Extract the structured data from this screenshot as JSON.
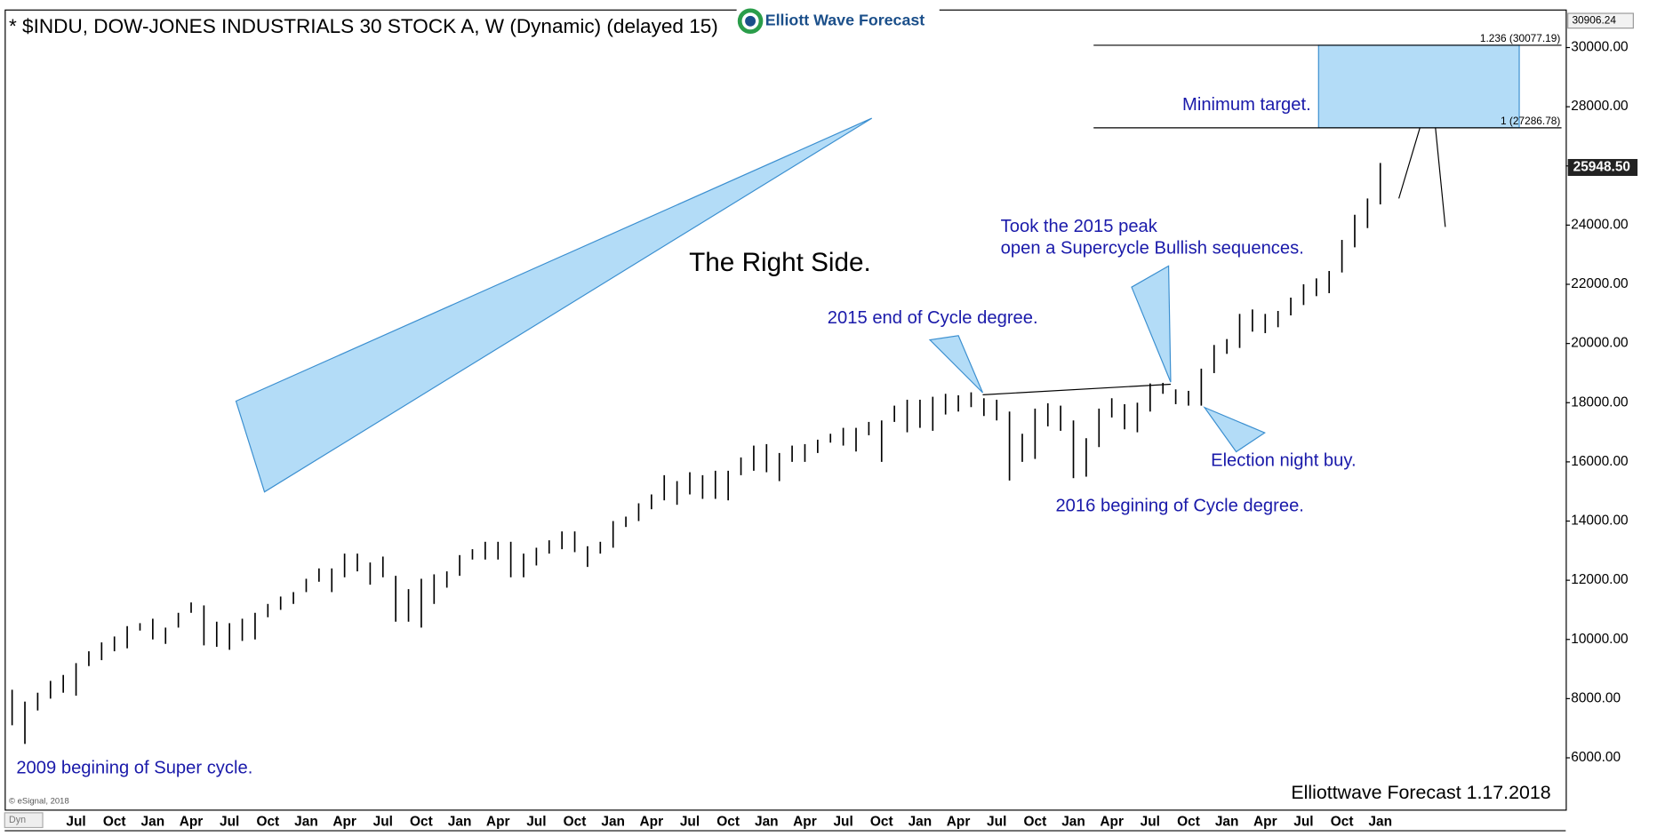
{
  "chart_data": {
    "type": "range",
    "title": "* $INDU, DOW-JONES INDUSTRIALS 30 STOCK A, W (Dynamic) (delayed 15)",
    "logo": "Elliott Wave Forecast",
    "categories": [
      null,
      null,
      null,
      null,
      null,
      "Jul",
      null,
      null,
      "Oct",
      null,
      null,
      "Jan",
      null,
      null,
      "Apr",
      null,
      null,
      "Jul",
      null,
      null,
      "Oct",
      null,
      null,
      "Jan",
      null,
      null,
      "Apr",
      null,
      null,
      "Jul",
      null,
      null,
      "Oct",
      null,
      null,
      "Jan",
      null,
      null,
      "Apr",
      null,
      null,
      "Jul",
      null,
      null,
      "Oct",
      null,
      null,
      "Jan",
      null,
      null,
      "Apr",
      null,
      null,
      "Jul",
      null,
      null,
      "Oct",
      null,
      null,
      "Jan",
      null,
      null,
      "Apr",
      null,
      null,
      "Jul",
      null,
      null,
      "Oct",
      null,
      null,
      "Jan",
      null,
      null,
      "Apr",
      null,
      null,
      "Jul",
      null,
      null,
      "Oct",
      null,
      null,
      "Jan",
      null,
      null,
      "Apr",
      null,
      null,
      "Jul",
      null,
      null,
      "Oct",
      null,
      null,
      "Jan",
      null,
      null,
      "Apr",
      null,
      null,
      "Jul",
      null,
      null,
      "Oct",
      null,
      null,
      "Jan",
      null,
      null,
      null,
      null,
      null,
      null,
      null,
      null,
      null,
      null,
      null,
      null,
      null,
      null
    ],
    "high": [
      8300,
      7900,
      8200,
      8600,
      8800,
      9200,
      9600,
      9900,
      10100,
      10450,
      10550,
      10700,
      10400,
      10900,
      11250,
      11150,
      10600,
      10550,
      10700,
      10900,
      11200,
      11450,
      11600,
      12050,
      12400,
      12400,
      12900,
      12900,
      12600,
      12800,
      12150,
      11700,
      12050,
      12200,
      12300,
      12850,
      13050,
      13300,
      13300,
      13300,
      12900,
      13100,
      13350,
      13650,
      13650,
      13150,
      13300,
      14000,
      14150,
      14600,
      14900,
      15550,
      15350,
      15650,
      15550,
      15700,
      15700,
      16150,
      16550,
      16600,
      16300,
      16550,
      16600,
      16750,
      16950,
      17150,
      17150,
      17350,
      17400,
      17900,
      18100,
      18100,
      18200,
      18300,
      18250,
      18350,
      18150,
      18100,
      17700,
      16950,
      17800,
      17980,
      17900,
      17400,
      16800,
      17800,
      18150,
      17950,
      18000,
      18650,
      18670,
      18450,
      18400,
      19150,
      19950,
      20150,
      21000,
      21150,
      21000,
      21100,
      21550,
      22000,
      22200,
      22450,
      23500,
      24350,
      24900,
      26100,
      null,
      null,
      null,
      null,
      null,
      null,
      null,
      null,
      null,
      null,
      null,
      null,
      null,
      null
    ],
    "low": [
      7100,
      6470,
      7600,
      8000,
      8200,
      8100,
      9100,
      9300,
      9600,
      9700,
      10300,
      10000,
      9850,
      10400,
      10900,
      9800,
      9750,
      9650,
      9950,
      10000,
      10750,
      11000,
      11200,
      11600,
      11950,
      11600,
      12100,
      12300,
      11850,
      12100,
      10600,
      10600,
      10400,
      11200,
      11750,
      12150,
      12700,
      12700,
      12700,
      12100,
      12100,
      12500,
      12900,
      13050,
      12950,
      12450,
      12900,
      13100,
      13800,
      14000,
      14400,
      14700,
      14550,
      14900,
      14750,
      14750,
      14700,
      15550,
      15700,
      15650,
      15350,
      16000,
      16000,
      16300,
      16650,
      16550,
      16350,
      16900,
      16000,
      17350,
      17000,
      17150,
      17050,
      17600,
      17700,
      17850,
      17550,
      17400,
      15370,
      16000,
      16100,
      17200,
      17050,
      15450,
      15500,
      16500,
      17500,
      17100,
      17000,
      17700,
      18300,
      17950,
      17900,
      17900,
      19000,
      19650,
      19850,
      20400,
      20350,
      20550,
      20950,
      21300,
      21600,
      21700,
      22400,
      23250,
      23900,
      24700,
      null,
      null,
      null,
      null,
      null,
      null,
      null,
      null,
      null,
      null,
      null,
      null,
      null,
      null
    ],
    "color": "#000000",
    "ylim": [
      4250,
      31250
    ],
    "yticks": [
      {
        "value": 6000,
        "label": "6000.00"
      },
      {
        "value": 8000,
        "label": "8000.00"
      },
      {
        "value": 10000,
        "label": "10000.00"
      },
      {
        "value": 12000,
        "label": "12000.00"
      },
      {
        "value": 14000,
        "label": "14000.00"
      },
      {
        "value": 16000,
        "label": "16000.00"
      },
      {
        "value": 18000,
        "label": "18000.00"
      },
      {
        "value": 20000,
        "label": "20000.00"
      },
      {
        "value": 22000,
        "label": "22000.00"
      },
      {
        "value": 24000,
        "label": "24000.00"
      },
      {
        "value": 26000,
        "label": "26000.00"
      },
      {
        "value": 28000,
        "label": "28000.00"
      },
      {
        "value": 30000,
        "label": "30000.00"
      }
    ],
    "axis_high": 30906.24,
    "last_price": {
      "value": 25948.5,
      "label": "25948.50"
    },
    "fib_levels": [
      {
        "value": 30077.19,
        "label": "1.236 (30077.19)"
      },
      {
        "value": 27286.78,
        "label": "1 (27286.78)"
      }
    ],
    "annotations": {
      "right_side": "The Right Side.",
      "min_target": "Minimum target.",
      "took_1": "Took the 2015 peak",
      "took_2": "open a Supercycle Bullish sequences.",
      "end_2015": "2015 end of Cycle degree.",
      "election": "Election night buy.",
      "begin_2016": "2016 begining of Cycle degree.",
      "begin_2009": "2009 begining of Super cycle.",
      "footer": "Elliottwave Forecast  1.17.2018",
      "copyright": "© eSignal, 2018",
      "dyn": "Dyn"
    }
  }
}
